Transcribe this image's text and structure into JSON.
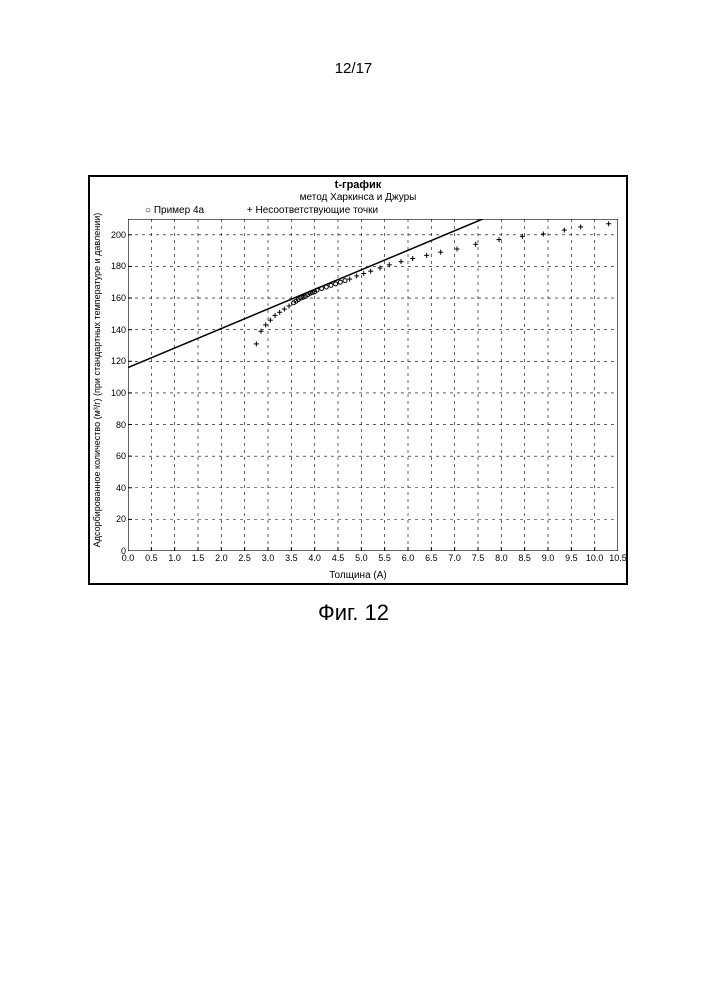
{
  "page_number": "12/17",
  "caption": "Фиг. 12",
  "chart": {
    "type": "scatter",
    "title": "t-график",
    "subtitle": "метод Харкинса и Джуры",
    "legend": {
      "series1": {
        "marker": "circle",
        "label": "Пример 4a"
      },
      "series2": {
        "marker": "plus",
        "label": "Несоответствующие точки"
      }
    },
    "xlabel": "Толщина (А)",
    "ylabel": "Адсорбированное количество (м³/г) (при стандартных температуре и давлении)",
    "xlim": [
      0.0,
      10.5
    ],
    "ylim": [
      0,
      210
    ],
    "xtick_step": 0.5,
    "ytick_step": 20,
    "grid_color": "#000000",
    "grid_dash": "3,4",
    "background_color": "#ffffff",
    "axis_color": "#000000",
    "tick_fontsize": 9,
    "label_fontsize": 10,
    "title_fontsize": 11,
    "fit_line": {
      "x1": 0.0,
      "y1": 116,
      "x2": 7.6,
      "y2": 210,
      "color": "#000000",
      "width": 1.5
    },
    "series_circle": {
      "marker": "circle",
      "color": "#000000",
      "marker_size": 4,
      "points": [
        [
          3.55,
          157
        ],
        [
          3.6,
          158
        ],
        [
          3.65,
          159
        ],
        [
          3.7,
          160
        ],
        [
          3.75,
          160.5
        ],
        [
          3.8,
          161
        ],
        [
          3.85,
          162
        ],
        [
          3.9,
          163
        ],
        [
          3.95,
          163.5
        ],
        [
          4.0,
          164
        ],
        [
          4.05,
          165
        ],
        [
          4.15,
          166
        ],
        [
          4.25,
          167
        ],
        [
          4.35,
          168
        ],
        [
          4.45,
          169
        ],
        [
          4.55,
          170
        ],
        [
          4.65,
          171
        ]
      ]
    },
    "series_plus": {
      "marker": "plus",
      "color": "#000000",
      "marker_size": 5,
      "points": [
        [
          2.75,
          131
        ],
        [
          2.85,
          139
        ],
        [
          2.95,
          143
        ],
        [
          3.05,
          146
        ],
        [
          3.15,
          149
        ],
        [
          3.25,
          151
        ],
        [
          3.35,
          153
        ],
        [
          3.45,
          155
        ],
        [
          4.75,
          172
        ],
        [
          4.9,
          174
        ],
        [
          5.05,
          175.5
        ],
        [
          5.2,
          177
        ],
        [
          5.4,
          179
        ],
        [
          5.6,
          181
        ],
        [
          5.85,
          183
        ],
        [
          6.1,
          185
        ],
        [
          6.4,
          187
        ],
        [
          6.7,
          189
        ],
        [
          7.05,
          191
        ],
        [
          7.45,
          194
        ],
        [
          7.95,
          197
        ],
        [
          8.45,
          199
        ],
        [
          8.9,
          200.5
        ],
        [
          9.35,
          203
        ],
        [
          9.7,
          205
        ],
        [
          10.3,
          207
        ]
      ]
    }
  }
}
